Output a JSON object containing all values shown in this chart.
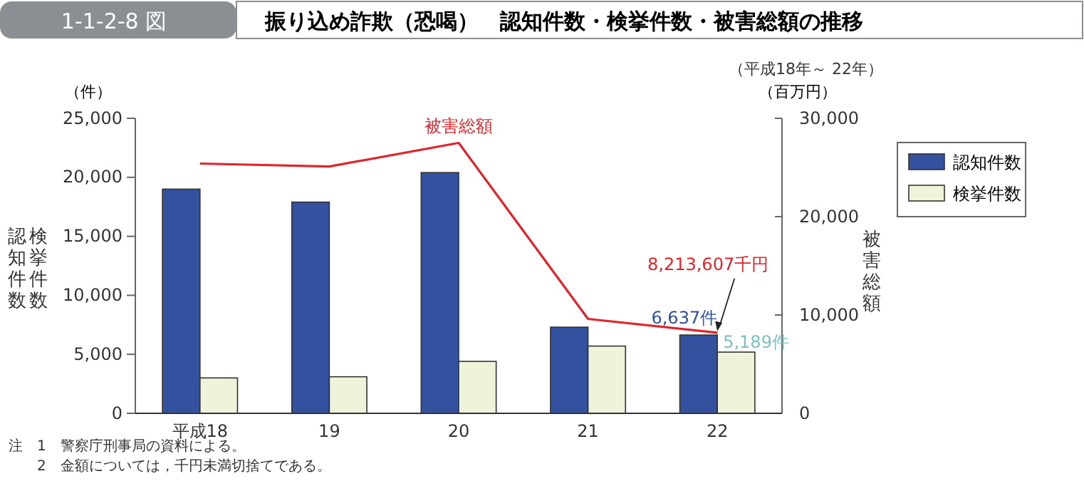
{
  "chart_data": {
    "type": "bar",
    "title": "振り込め詐欺（恐喝）　認知件数・検挙件数・被害総額の推移",
    "subtitle": "（平成18年～ 22年）",
    "ylabel": "認知件数",
    "y2label": "被害総額",
    "categories": [
      "平成18",
      "19",
      "20",
      "21",
      "22"
    ],
    "series": [
      {
        "name": "認知件数",
        "color": "#33519e",
        "values": [
          19000,
          17900,
          20400,
          7300,
          6637
        ],
        "value_labels": [
          null,
          null,
          null,
          null,
          "6,637件"
        ]
      },
      {
        "name": "検挙件数",
        "color": "#eef3da",
        "values": [
          3000,
          3100,
          4400,
          5700,
          5189
        ],
        "value_labels": [
          null,
          null,
          null,
          null,
          "5,189件"
        ]
      },
      {
        "name": "被害総額",
        "type": "line",
        "axis": "y2",
        "color": "#e0242b",
        "values": [
          25400,
          25100,
          27500,
          9600,
          8200
        ]
      }
    ],
    "ylim": [
      0,
      25000
    ],
    "yticks": [
      {
        "value": 0,
        "label": "0"
      },
      {
        "value": 5000,
        "label": "5,000"
      },
      {
        "value": 10000,
        "label": "10,000"
      },
      {
        "value": 15000,
        "label": "15,000"
      },
      {
        "value": 20000,
        "label": "20,000"
      },
      {
        "value": 25000,
        "label": "25,000"
      }
    ],
    "y2lim": [
      0,
      30000
    ],
    "y2ticks": [
      {
        "value": 0,
        "label": "0"
      },
      {
        "value": 10000,
        "label": "10,000"
      },
      {
        "value": 20000,
        "label": "20,000"
      },
      {
        "value": 30000,
        "label": "30,000"
      }
    ],
    "legend": "top right",
    "grid": false,
    "annotations": [
      "1-1-2-8 図",
      "（件）",
      "（百万円）",
      "検挙件数",
      "8,213,607千円",
      "注　1　警察庁刑事局の資料による。",
      "　　2　金額については，千円未満切捨てである。"
    ]
  }
}
